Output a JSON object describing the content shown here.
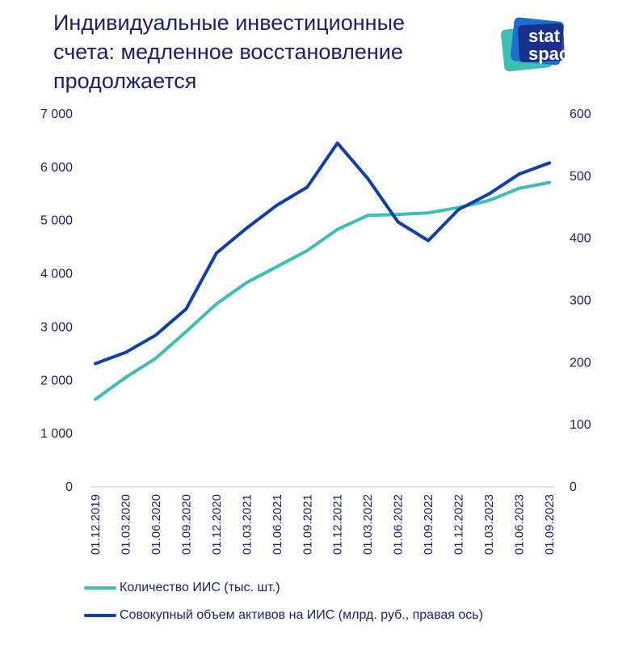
{
  "title_lines": [
    "Индивидуальные инвестиционные",
    "счета: медленное восстановление",
    "продолжается"
  ],
  "logo": {
    "line1": "stat",
    "line2": "space",
    "colors": [
      "#3cbfb4",
      "#1a6fd0",
      "#1c2580"
    ]
  },
  "colors": {
    "count": "#3dbdb4",
    "assets": "#0f3fa8",
    "text": "#1b1f6b"
  },
  "chart_data": {
    "type": "line",
    "x": [
      "01.12.2019",
      "01.03.2020",
      "01.06.2020",
      "01.09.2020",
      "01.12.2020",
      "01.03.2021",
      "01.06.2021",
      "01.09.2021",
      "01.12.2021",
      "01.03.2022",
      "01.06.2022",
      "01.09.2022",
      "01.12.2022",
      "01.03.2023",
      "01.06.2023",
      "01.09.2023"
    ],
    "series": [
      {
        "name": "Количество ИИС (тыс. шт.)",
        "axis": "left",
        "values": [
          1630,
          2040,
          2400,
          2900,
          3420,
          3820,
          4120,
          4420,
          4820,
          5080,
          5100,
          5130,
          5230,
          5360,
          5590,
          5700
        ]
      },
      {
        "name": "Совокупный объем активов на ИИС (млрд. руб., правая ось)",
        "axis": "right",
        "values": [
          197,
          215,
          243,
          285,
          375,
          415,
          452,
          481,
          552,
          495,
          425,
          395,
          445,
          470,
          502,
          520
        ]
      }
    ],
    "y_left": {
      "range": [
        0,
        7000
      ],
      "ticks": [
        "0",
        "1 000",
        "2 000",
        "3 000",
        "4 000",
        "5 000",
        "6 000",
        "7 000"
      ]
    },
    "y_right": {
      "range": [
        0,
        600
      ],
      "ticks": [
        "0",
        "100",
        "200",
        "300",
        "400",
        "500",
        "600"
      ]
    },
    "grid": false,
    "legend_position": "bottom-left"
  }
}
